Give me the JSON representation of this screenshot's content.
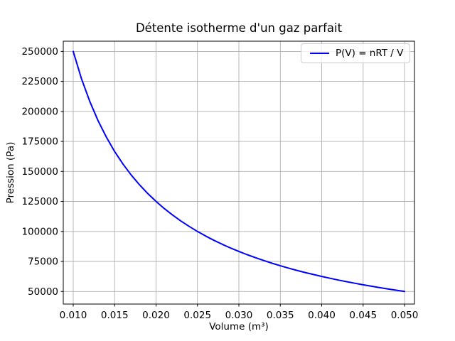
{
  "chart_data": {
    "type": "line",
    "title": "Détente isotherme d'un gaz parfait",
    "xlabel": "Volume (m³)",
    "ylabel": "Pression (Pa)",
    "grid": true,
    "xlim": [
      0.0088,
      0.0512
    ],
    "ylim": [
      39500,
      258500
    ],
    "xticks": {
      "values": [
        0.01,
        0.015,
        0.02,
        0.025,
        0.03,
        0.035,
        0.04,
        0.045,
        0.05
      ],
      "labels": [
        "0.010",
        "0.015",
        "0.020",
        "0.025",
        "0.030",
        "0.035",
        "0.040",
        "0.045",
        "0.050"
      ]
    },
    "yticks": {
      "values": [
        50000,
        75000,
        100000,
        125000,
        150000,
        175000,
        200000,
        225000,
        250000
      ],
      "labels": [
        "50000",
        "75000",
        "100000",
        "125000",
        "150000",
        "175000",
        "200000",
        "225000",
        "250000"
      ]
    },
    "legend": {
      "position": "upper right",
      "entries": [
        {
          "label": "P(V) = nRT / V",
          "color": "#0000ff"
        }
      ]
    },
    "series": [
      {
        "name": "P(V) = nRT / V",
        "color": "#0000ff",
        "x": [
          0.01,
          0.011,
          0.012,
          0.013,
          0.014,
          0.015,
          0.016,
          0.017,
          0.018,
          0.019,
          0.02,
          0.021,
          0.022,
          0.023,
          0.024,
          0.025,
          0.026,
          0.027,
          0.028,
          0.029,
          0.03,
          0.031,
          0.032,
          0.033,
          0.034,
          0.035,
          0.036,
          0.037,
          0.038,
          0.039,
          0.04,
          0.041,
          0.042,
          0.043,
          0.044,
          0.045,
          0.046,
          0.047,
          0.048,
          0.049,
          0.05
        ],
        "y": [
          250000,
          227273,
          208333,
          192308,
          178571,
          166667,
          156250,
          147059,
          138889,
          131579,
          125000,
          119048,
          113636,
          108696,
          104167,
          100000,
          96154,
          92593,
          89286,
          86207,
          83333,
          80645,
          78125,
          75758,
          73529,
          71429,
          69444,
          67568,
          65789,
          64103,
          62500,
          60976,
          59524,
          58140,
          56818,
          55556,
          54348,
          53191,
          52083,
          51020,
          50000
        ]
      }
    ]
  },
  "colors": {
    "line": "#0000ff",
    "grid": "#b0b0b0",
    "axis": "#000000",
    "text": "#000000",
    "legend_border": "#cccccc",
    "background": "#ffffff"
  }
}
